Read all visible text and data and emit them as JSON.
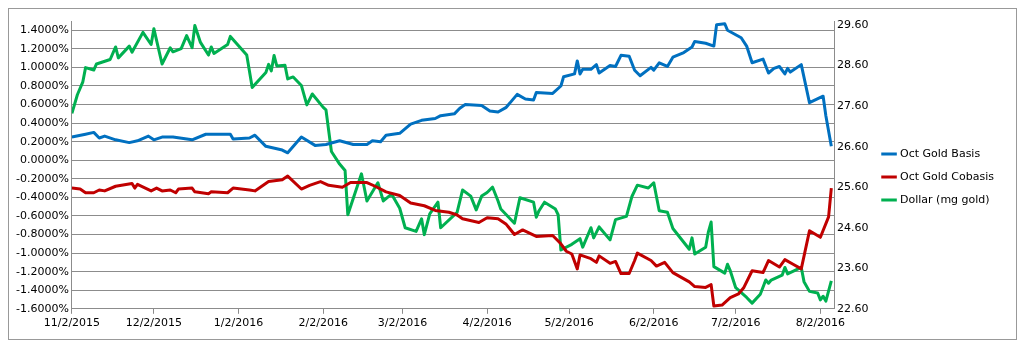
{
  "chart_data": {
    "type": "line",
    "legend": "right",
    "grid": "y",
    "marker": "none",
    "line_style": "solid",
    "xlim": [
      "2015-11-02",
      "2016-08-07"
    ],
    "xticks": [
      {
        "value": "2015-11-02",
        "label": "11/2/2015"
      },
      {
        "value": "2015-12-02",
        "label": "12/2/2015"
      },
      {
        "value": "2016-01-02",
        "label": "1/2/2016"
      },
      {
        "value": "2016-02-02",
        "label": "2/2/2016"
      },
      {
        "value": "2016-03-02",
        "label": "3/2/2016"
      },
      {
        "value": "2016-04-02",
        "label": "4/2/2016"
      },
      {
        "value": "2016-05-02",
        "label": "5/2/2016"
      },
      {
        "value": "2016-06-02",
        "label": "6/2/2016"
      },
      {
        "value": "2016-07-02",
        "label": "7/2/2016"
      },
      {
        "value": "2016-08-02",
        "label": "8/2/2016"
      }
    ],
    "ylim": [
      -1.6,
      1.5
    ],
    "yticks": [
      {
        "value": -1.6,
        "label": "-1.6000%"
      },
      {
        "value": -1.4,
        "label": "-1.4000%"
      },
      {
        "value": -1.2,
        "label": "-1.2000%"
      },
      {
        "value": -1.0,
        "label": "-1.0000%"
      },
      {
        "value": -0.8,
        "label": "-0.8000%"
      },
      {
        "value": -0.6,
        "label": "-0.6000%"
      },
      {
        "value": -0.4,
        "label": "-0.4000%"
      },
      {
        "value": -0.2,
        "label": "-0.2000%"
      },
      {
        "value": 0,
        "label": "0.0000%"
      },
      {
        "value": 0.2,
        "label": "0.2000%"
      },
      {
        "value": 0.4,
        "label": "0.4000%"
      },
      {
        "value": 0.6,
        "label": "0.6000%"
      },
      {
        "value": 0.8,
        "label": "0.8000%"
      },
      {
        "value": 1.0,
        "label": "1.0000%"
      },
      {
        "value": 1.2,
        "label": "1.2000%"
      },
      {
        "value": 1.4,
        "label": "1.4000%"
      }
    ],
    "y2lim": [
      22.6,
      29.7
    ],
    "y2ticks": [
      {
        "value": 22.6,
        "label": "22.60"
      },
      {
        "value": 23.6,
        "label": "23.60"
      },
      {
        "value": 24.6,
        "label": "24.60"
      },
      {
        "value": 25.6,
        "label": "25.60"
      },
      {
        "value": 26.6,
        "label": "26.60"
      },
      {
        "value": 27.6,
        "label": "27.60"
      },
      {
        "value": 28.6,
        "label": "28.60"
      },
      {
        "value": 29.6,
        "label": "29.60"
      }
    ],
    "series": [
      {
        "name": "Oct Gold Basis",
        "color": "#0070c0",
        "x": [
          "2015-11-02",
          "2015-11-07",
          "2015-11-10",
          "2015-11-12",
          "2015-11-14",
          "2015-11-18",
          "2015-11-23",
          "2015-11-26",
          "2015-11-30",
          "2015-12-02",
          "2015-12-05",
          "2015-12-09",
          "2015-12-16",
          "2015-12-21",
          "2015-12-30",
          "2015-12-31",
          "2016-01-06",
          "2016-01-08",
          "2016-01-12",
          "2016-01-18",
          "2016-01-20",
          "2016-01-25",
          "2016-01-30",
          "2016-02-03",
          "2016-02-08",
          "2016-02-13",
          "2016-02-18",
          "2016-02-20",
          "2016-02-23",
          "2016-02-25",
          "2016-03-01",
          "2016-03-05",
          "2016-03-09",
          "2016-03-14",
          "2016-03-16",
          "2016-03-21",
          "2016-03-23",
          "2016-03-25",
          "2016-03-31",
          "2016-04-03",
          "2016-04-06",
          "2016-04-09",
          "2016-04-13",
          "2016-04-16",
          "2016-04-19",
          "2016-04-20",
          "2016-04-26",
          "2016-04-29",
          "2016-04-30",
          "2016-05-04",
          "2016-05-05",
          "2016-05-06",
          "2016-05-07",
          "2016-05-10",
          "2016-05-12",
          "2016-05-13",
          "2016-05-17",
          "2016-05-19",
          "2016-05-21",
          "2016-05-24",
          "2016-05-26",
          "2016-05-28",
          "2016-06-01",
          "2016-06-02",
          "2016-06-04",
          "2016-06-07",
          "2016-06-09",
          "2016-06-13",
          "2016-06-16",
          "2016-06-17",
          "2016-06-21",
          "2016-06-24",
          "2016-06-25",
          "2016-06-28",
          "2016-06-29",
          "2016-07-04",
          "2016-07-06",
          "2016-07-08",
          "2016-07-12",
          "2016-07-14",
          "2016-07-16",
          "2016-07-18",
          "2016-07-20",
          "2016-07-21",
          "2016-07-22",
          "2016-07-26",
          "2016-07-29",
          "2016-08-03",
          "2016-08-04",
          "2016-08-06"
        ],
        "values": [
          0.25,
          0.28,
          0.3,
          0.24,
          0.26,
          0.22,
          0.19,
          0.21,
          0.26,
          0.22,
          0.25,
          0.25,
          0.22,
          0.28,
          0.28,
          0.23,
          0.24,
          0.27,
          0.15,
          0.11,
          0.08,
          0.25,
          0.16,
          0.17,
          0.21,
          0.17,
          0.17,
          0.21,
          0.2,
          0.27,
          0.29,
          0.39,
          0.43,
          0.45,
          0.48,
          0.5,
          0.56,
          0.6,
          0.59,
          0.53,
          0.52,
          0.57,
          0.71,
          0.66,
          0.65,
          0.73,
          0.72,
          0.8,
          0.9,
          0.93,
          1.07,
          0.93,
          0.98,
          0.98,
          1.03,
          0.94,
          1.02,
          1.01,
          1.13,
          1.12,
          0.97,
          0.91,
          1.0,
          0.97,
          1.05,
          1.01,
          1.11,
          1.16,
          1.22,
          1.28,
          1.26,
          1.23,
          1.46,
          1.47,
          1.4,
          1.32,
          1.23,
          1.05,
          1.09,
          0.94,
          0.99,
          1.01,
          0.93,
          0.99,
          0.95,
          1.03,
          0.62,
          0.69,
          0.48,
          0.15
        ]
      },
      {
        "name": "Oct Gold Cobasis",
        "color": "#c00000",
        "x": [
          "2015-11-02",
          "2015-11-05",
          "2015-11-07",
          "2015-11-10",
          "2015-11-12",
          "2015-11-14",
          "2015-11-18",
          "2015-11-24",
          "2015-11-25",
          "2015-11-26",
          "2015-12-01",
          "2015-12-03",
          "2015-12-05",
          "2015-12-08",
          "2015-12-10",
          "2015-12-11",
          "2015-12-16",
          "2015-12-17",
          "2015-12-22",
          "2015-12-23",
          "2015-12-29",
          "2015-12-31",
          "2016-01-06",
          "2016-01-08",
          "2016-01-13",
          "2016-01-18",
          "2016-01-20",
          "2016-01-25",
          "2016-01-28",
          "2016-02-01",
          "2016-02-04",
          "2016-02-09",
          "2016-02-12",
          "2016-02-18",
          "2016-02-21",
          "2016-02-25",
          "2016-03-01",
          "2016-03-05",
          "2016-03-10",
          "2016-03-14",
          "2016-03-19",
          "2016-03-22",
          "2016-03-24",
          "2016-03-30",
          "2016-04-02",
          "2016-04-06",
          "2016-04-09",
          "2016-04-12",
          "2016-04-15",
          "2016-04-20",
          "2016-04-26",
          "2016-04-29",
          "2016-05-01",
          "2016-05-03",
          "2016-05-05",
          "2016-05-06",
          "2016-05-10",
          "2016-05-12",
          "2016-05-13",
          "2016-05-17",
          "2016-05-19",
          "2016-05-21",
          "2016-05-24",
          "2016-05-26",
          "2016-05-27",
          "2016-06-01",
          "2016-06-03",
          "2016-06-06",
          "2016-06-09",
          "2016-06-15",
          "2016-06-17",
          "2016-06-21",
          "2016-06-23",
          "2016-06-24",
          "2016-06-27",
          "2016-06-30",
          "2016-07-03",
          "2016-07-05",
          "2016-07-08",
          "2016-07-12",
          "2016-07-14",
          "2016-07-18",
          "2016-07-20",
          "2016-07-23",
          "2016-07-26",
          "2016-07-29",
          "2016-08-02",
          "2016-08-05",
          "2016-08-06"
        ],
        "values": [
          -0.3,
          -0.31,
          -0.35,
          -0.35,
          -0.32,
          -0.33,
          -0.28,
          -0.25,
          -0.3,
          -0.26,
          -0.33,
          -0.3,
          -0.33,
          -0.32,
          -0.35,
          -0.31,
          -0.3,
          -0.34,
          -0.36,
          -0.34,
          -0.35,
          -0.3,
          -0.32,
          -0.33,
          -0.23,
          -0.21,
          -0.17,
          -0.31,
          -0.27,
          -0.23,
          -0.27,
          -0.29,
          -0.24,
          -0.24,
          -0.28,
          -0.34,
          -0.38,
          -0.46,
          -0.49,
          -0.54,
          -0.56,
          -0.59,
          -0.63,
          -0.67,
          -0.62,
          -0.63,
          -0.69,
          -0.8,
          -0.75,
          -0.82,
          -0.81,
          -0.9,
          -0.98,
          -1.01,
          -1.17,
          -1.02,
          -1.06,
          -1.1,
          -1.03,
          -1.11,
          -1.09,
          -1.22,
          -1.22,
          -1.08,
          -1.0,
          -1.08,
          -1.14,
          -1.1,
          -1.21,
          -1.31,
          -1.36,
          -1.37,
          -1.34,
          -1.57,
          -1.56,
          -1.48,
          -1.44,
          -1.37,
          -1.19,
          -1.21,
          -1.08,
          -1.15,
          -1.07,
          -1.12,
          -1.17,
          -0.76,
          -0.83,
          -0.61,
          -0.3
        ]
      },
      {
        "name": "Dollar (mg gold)",
        "color": "#00b050",
        "axis": "y2",
        "x": [
          "2015-11-02",
          "2015-11-04",
          "2015-11-06",
          "2015-11-07",
          "2015-11-10",
          "2015-11-11",
          "2015-11-16",
          "2015-11-18",
          "2015-11-19",
          "2015-11-23",
          "2015-11-24",
          "2015-11-28",
          "2015-12-01",
          "2015-12-02",
          "2015-12-05",
          "2015-12-08",
          "2015-12-09",
          "2015-12-12",
          "2015-12-14",
          "2015-12-16",
          "2015-12-17",
          "2015-12-19",
          "2015-12-22",
          "2015-12-23",
          "2015-12-24",
          "2015-12-29",
          "2015-12-30",
          "2016-01-05",
          "2016-01-07",
          "2016-01-12",
          "2016-01-13",
          "2016-01-14",
          "2016-01-15",
          "2016-01-16",
          "2016-01-19",
          "2016-01-20",
          "2016-01-22",
          "2016-01-25",
          "2016-01-27",
          "2016-01-29",
          "2016-02-02",
          "2016-02-03",
          "2016-02-05",
          "2016-02-08",
          "2016-02-10",
          "2016-02-11",
          "2016-02-16",
          "2016-02-18",
          "2016-02-22",
          "2016-02-24",
          "2016-02-27",
          "2016-03-01",
          "2016-03-03",
          "2016-03-07",
          "2016-03-09",
          "2016-03-10",
          "2016-03-12",
          "2016-03-15",
          "2016-03-16",
          "2016-03-22",
          "2016-03-24",
          "2016-03-27",
          "2016-03-29",
          "2016-03-31",
          "2016-04-02",
          "2016-04-04",
          "2016-04-06",
          "2016-04-07",
          "2016-04-12",
          "2016-04-14",
          "2016-04-19",
          "2016-04-20",
          "2016-04-21",
          "2016-04-23",
          "2016-04-27",
          "2016-04-28",
          "2016-04-29",
          "2016-05-03",
          "2016-05-06",
          "2016-05-07",
          "2016-05-10",
          "2016-05-11",
          "2016-05-13",
          "2016-05-17",
          "2016-05-19",
          "2016-05-23",
          "2016-05-25",
          "2016-05-27",
          "2016-05-31",
          "2016-06-02",
          "2016-06-04",
          "2016-06-07",
          "2016-06-09",
          "2016-06-15",
          "2016-06-16",
          "2016-06-17",
          "2016-06-21",
          "2016-06-22",
          "2016-06-23",
          "2016-06-24",
          "2016-06-28",
          "2016-06-29",
          "2016-06-30",
          "2016-07-02",
          "2016-07-06",
          "2016-07-08",
          "2016-07-11",
          "2016-07-13",
          "2016-07-14",
          "2016-07-15",
          "2016-07-19",
          "2016-07-20",
          "2016-07-21",
          "2016-07-26",
          "2016-07-27",
          "2016-07-29",
          "2016-08-01",
          "2016-08-02",
          "2016-08-03",
          "2016-08-04",
          "2016-08-06"
        ],
        "values": [
          27.42,
          27.88,
          28.2,
          28.55,
          28.49,
          28.64,
          28.75,
          29.06,
          28.79,
          29.08,
          28.93,
          29.42,
          29.12,
          29.51,
          28.64,
          29.04,
          28.94,
          29.02,
          29.34,
          29.04,
          29.59,
          29.18,
          28.86,
          29.06,
          28.9,
          29.12,
          29.32,
          28.86,
          28.06,
          28.43,
          28.63,
          28.47,
          28.85,
          28.59,
          28.61,
          28.27,
          28.32,
          28.11,
          27.63,
          27.9,
          27.57,
          27.51,
          26.48,
          26.17,
          26.01,
          24.92,
          25.93,
          25.26,
          25.71,
          25.26,
          25.43,
          25.08,
          24.6,
          24.51,
          24.82,
          24.43,
          24.94,
          25.23,
          24.6,
          24.98,
          25.53,
          25.38,
          25.04,
          25.38,
          25.47,
          25.6,
          25.26,
          25.06,
          24.71,
          25.34,
          25.23,
          24.86,
          25.02,
          25.23,
          25.06,
          24.92,
          24.05,
          24.19,
          24.33,
          24.12,
          24.6,
          24.35,
          24.62,
          24.3,
          24.8,
          24.88,
          25.37,
          25.65,
          25.58,
          25.71,
          25.02,
          24.98,
          24.58,
          24.07,
          24.35,
          23.95,
          24.12,
          24.5,
          24.74,
          23.64,
          23.48,
          23.7,
          23.54,
          23.12,
          22.88,
          22.74,
          22.96,
          23.31,
          23.23,
          23.31,
          23.43,
          23.62,
          23.46,
          23.62,
          23.27,
          23.03,
          22.99,
          22.82,
          22.91,
          22.79,
          23.29
        ]
      }
    ]
  }
}
